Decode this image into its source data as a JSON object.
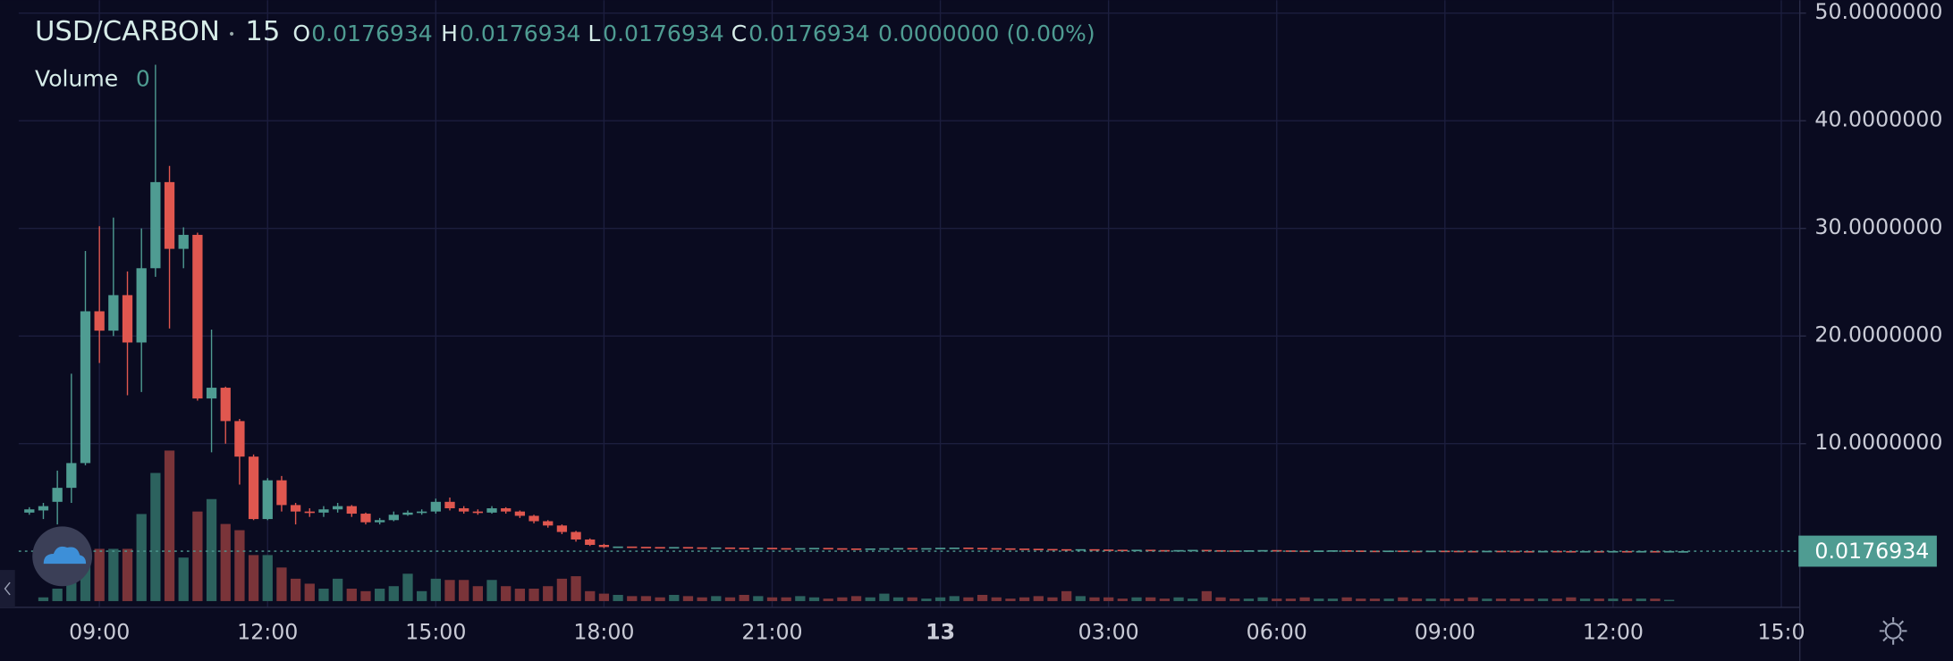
{
  "chart_data": {
    "type": "candlestick",
    "symbol": "USD/CARBON",
    "interval": 15,
    "ohlc_labels": [
      "O",
      "H",
      "L",
      "C"
    ],
    "change": "0.0000000 (0.00%)",
    "volume_label": "Volume",
    "x": [
      7.75,
      8,
      8.25,
      8.5,
      8.75,
      9,
      9.25,
      9.5,
      9.75,
      10,
      10.25,
      10.5,
      10.75,
      11,
      11.25,
      11.5,
      11.75,
      12,
      12.25,
      12.5,
      12.75,
      13,
      13.25,
      13.5,
      13.75,
      14,
      14.25,
      14.5,
      14.75,
      15,
      15.25,
      15.5,
      15.75,
      16,
      16.25,
      16.5,
      16.75,
      17,
      17.25,
      17.5,
      17.75,
      18,
      18.25,
      18.5,
      18.75,
      19,
      19.25,
      19.5,
      19.75,
      20,
      20.25,
      20.5,
      20.75,
      21,
      21.25,
      21.5,
      21.75,
      22,
      22.25,
      22.5,
      22.75,
      23,
      23.25,
      23.5,
      23.75,
      24,
      24.25,
      24.5,
      24.75,
      25,
      25.25,
      25.5,
      25.75,
      26,
      26.25,
      26.5,
      26.75,
      27,
      27.25,
      27.5,
      27.75,
      28,
      28.25,
      28.5,
      28.75,
      29,
      29.25,
      29.5,
      29.75,
      30,
      30.25,
      30.5,
      30.75,
      31,
      31.25,
      31.5,
      31.75,
      32,
      32.25,
      32.5,
      32.75,
      33,
      33.25,
      33.5,
      33.75,
      34,
      34.25,
      34.5,
      34.75,
      35,
      35.25,
      35.5,
      35.75,
      36,
      36.25,
      36.5,
      36.75,
      37,
      37.25
    ],
    "open": [
      3.6,
      3.8,
      4.6,
      5.9,
      8.2,
      22.3,
      20.5,
      23.8,
      19.4,
      26.3,
      34.3,
      28.1,
      29.4,
      14.2,
      15.2,
      12.1,
      8.8,
      3.0,
      6.6,
      4.3,
      3.7,
      3.6,
      3.9,
      4.2,
      3.5,
      2.7,
      2.9,
      3.4,
      3.6,
      3.7,
      4.6,
      4.0,
      3.7,
      3.6,
      4.0,
      3.7,
      3.3,
      2.8,
      2.4,
      1.8,
      1.1,
      0.6,
      0.4,
      0.45,
      0.42,
      0.4,
      0.38,
      0.4,
      0.37,
      0.35,
      0.36,
      0.33,
      0.31,
      0.33,
      0.3,
      0.28,
      0.3,
      0.32,
      0.29,
      0.27,
      0.25,
      0.27,
      0.29,
      0.31,
      0.28,
      0.3,
      0.33,
      0.35,
      0.32,
      0.3,
      0.28,
      0.26,
      0.24,
      0.22,
      0.2,
      0.18,
      0.2,
      0.17,
      0.15,
      0.13,
      0.15,
      0.12,
      0.1,
      0.12,
      0.14,
      0.11,
      0.09,
      0.08,
      0.1,
      0.12,
      0.09,
      0.07,
      0.06,
      0.08,
      0.1,
      0.08,
      0.06,
      0.05,
      0.07,
      0.05,
      0.04,
      0.06,
      0.05,
      0.04,
      0.03,
      0.05,
      0.04,
      0.03,
      0.02,
      0.04,
      0.03,
      0.02,
      0.03,
      0.02,
      0.03,
      0.02,
      0.03,
      0.02,
      0.0176934
    ],
    "high": [
      4.1,
      4.5,
      7.5,
      16.5,
      27.9,
      30.2,
      31.0,
      26.0,
      30.0,
      45.2,
      35.8,
      30.1,
      29.6,
      20.6,
      15.3,
      12.3,
      9.0,
      6.8,
      7.0,
      4.5,
      4.0,
      4.2,
      4.5,
      4.3,
      3.6,
      3.1,
      3.7,
      3.8,
      3.9,
      4.9,
      5.0,
      4.2,
      3.9,
      4.2,
      4.1,
      3.8,
      3.4,
      2.9,
      2.5,
      1.9,
      1.2,
      0.7,
      null,
      null,
      null,
      null,
      null,
      null,
      null,
      null,
      null,
      null,
      null,
      null,
      null,
      null,
      null,
      null,
      null,
      null,
      null,
      null,
      null,
      null,
      null,
      null,
      null,
      null,
      null,
      null,
      null,
      null,
      null,
      null,
      null,
      null,
      null,
      null,
      null,
      null,
      null,
      null,
      null,
      null,
      null,
      null,
      null,
      null,
      null,
      null,
      null,
      null,
      null,
      null,
      null,
      null,
      null,
      null,
      null,
      null,
      null,
      null,
      null,
      null,
      null,
      null,
      null,
      null,
      null,
      null,
      null,
      null,
      null,
      null,
      null,
      null,
      null,
      null,
      0.0176934
    ],
    "low": [
      3.4,
      3.0,
      2.5,
      4.5,
      8.0,
      17.5,
      20.0,
      14.5,
      14.8,
      25.5,
      20.7,
      26.3,
      14.0,
      9.2,
      10.0,
      6.2,
      2.9,
      2.9,
      3.7,
      2.5,
      3.2,
      3.2,
      3.6,
      3.2,
      2.5,
      2.5,
      2.8,
      3.3,
      3.4,
      3.5,
      3.8,
      3.5,
      3.4,
      3.5,
      3.5,
      3.1,
      2.6,
      2.2,
      1.6,
      0.9,
      0.5,
      0.3,
      null,
      null,
      null,
      null,
      null,
      null,
      null,
      null,
      null,
      null,
      null,
      null,
      null,
      null,
      null,
      null,
      null,
      null,
      null,
      null,
      null,
      null,
      null,
      null,
      null,
      null,
      null,
      null,
      null,
      null,
      null,
      null,
      null,
      null,
      null,
      null,
      null,
      null,
      null,
      null,
      null,
      null,
      null,
      null,
      null,
      null,
      null,
      null,
      null,
      null,
      null,
      null,
      null,
      null,
      null,
      null,
      null,
      null,
      null,
      null,
      null,
      null,
      null,
      null,
      null,
      null,
      null,
      null,
      null,
      null,
      null,
      null,
      null,
      null,
      null,
      null,
      0.0176934
    ],
    "close": [
      3.9,
      4.2,
      5.9,
      8.2,
      22.3,
      20.5,
      23.8,
      19.4,
      26.3,
      34.3,
      28.1,
      29.4,
      14.2,
      15.2,
      12.1,
      8.8,
      3.0,
      6.6,
      4.3,
      3.7,
      3.6,
      3.9,
      4.2,
      3.5,
      2.7,
      2.9,
      3.4,
      3.6,
      3.7,
      4.6,
      4.0,
      3.7,
      3.6,
      4.0,
      3.7,
      3.3,
      2.8,
      2.4,
      1.8,
      1.1,
      0.6,
      0.4,
      0.45,
      0.42,
      0.4,
      0.38,
      0.4,
      0.37,
      0.35,
      0.36,
      0.33,
      0.31,
      0.33,
      0.3,
      0.28,
      0.3,
      0.32,
      0.29,
      0.27,
      0.25,
      0.27,
      0.29,
      0.31,
      0.28,
      0.3,
      0.33,
      0.35,
      0.32,
      0.3,
      0.28,
      0.26,
      0.24,
      0.22,
      0.2,
      0.18,
      0.2,
      0.17,
      0.15,
      0.13,
      0.15,
      0.12,
      0.1,
      0.12,
      0.14,
      0.11,
      0.09,
      0.08,
      0.1,
      0.12,
      0.09,
      0.07,
      0.06,
      0.08,
      0.1,
      0.08,
      0.06,
      0.05,
      0.07,
      0.05,
      0.04,
      0.06,
      0.05,
      0.04,
      0.03,
      0.05,
      0.04,
      0.03,
      0.02,
      0.04,
      0.03,
      0.02,
      0.03,
      0.02,
      0.03,
      0.02,
      0.03,
      0.02,
      0.03,
      0.0176934
    ],
    "volume": [
      0,
      3,
      10,
      30,
      42,
      42,
      42,
      42,
      70,
      103,
      121,
      35,
      72,
      82,
      62,
      57,
      37,
      37,
      27,
      18,
      14,
      10,
      18,
      10,
      8,
      10,
      12,
      22,
      8,
      18,
      17,
      17,
      12,
      17,
      12,
      10,
      10,
      12,
      18,
      20,
      8,
      6,
      5,
      4,
      4,
      3,
      5,
      4,
      3,
      4,
      3,
      5,
      4,
      3,
      3,
      4,
      3,
      2,
      3,
      4,
      3,
      6,
      3,
      3,
      2,
      3,
      4,
      3,
      5,
      3,
      2,
      3,
      4,
      3,
      8,
      4,
      3,
      3,
      2,
      3,
      3,
      2,
      3,
      2,
      8,
      3,
      2,
      2,
      3,
      2,
      2,
      3,
      2,
      2,
      3,
      2,
      2,
      2,
      3,
      2,
      2,
      2,
      2,
      3,
      2,
      2,
      2,
      2,
      2,
      2,
      3,
      2,
      2,
      2,
      2,
      2,
      2,
      1,
      0
    ],
    "colors": {
      "up": "#4f9c92",
      "down": "#e0574f",
      "volume_up": "#2c625e",
      "volume_down": "#7a3439"
    },
    "xlim": [
      7.56,
      39.33
    ],
    "xticks": [
      {
        "value": 9,
        "label": "09:00"
      },
      {
        "value": 12,
        "label": "12:00"
      },
      {
        "value": 15,
        "label": "15:00"
      },
      {
        "value": 18,
        "label": "18:00"
      },
      {
        "value": 21,
        "label": "21:00"
      },
      {
        "value": 24,
        "label": "13"
      },
      {
        "value": 27,
        "label": "03:00"
      },
      {
        "value": 30,
        "label": "06:00"
      },
      {
        "value": 33,
        "label": "09:00"
      },
      {
        "value": 36,
        "label": "12:00"
      },
      {
        "value": 39,
        "label": "15:0"
      }
    ],
    "ylim": [
      -5.2,
      51.2
    ],
    "yticks": [
      {
        "value": 10,
        "label": "10.0000000"
      },
      {
        "value": 20,
        "label": "20.0000000"
      },
      {
        "value": 30,
        "label": "30.0000000"
      },
      {
        "value": 40,
        "label": "40.0000000"
      },
      {
        "value": 50,
        "label": "50.0000000"
      }
    ],
    "volume_ylim": [
      0,
      400
    ],
    "grid": true
  }
}
